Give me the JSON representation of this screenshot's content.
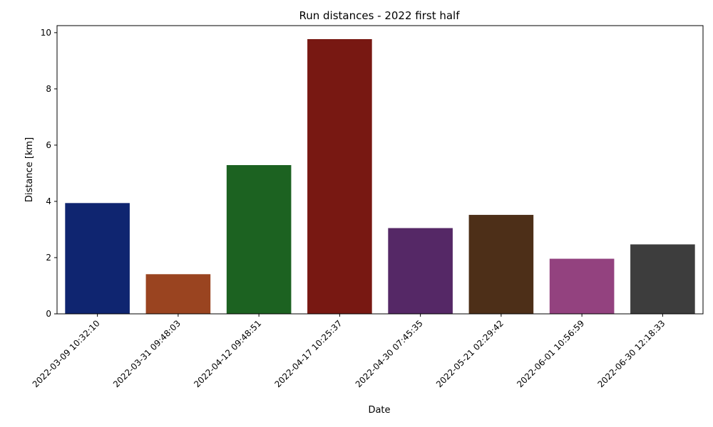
{
  "chart_data": {
    "type": "bar",
    "title": "Run distances - 2022 first half",
    "xlabel": "Date",
    "ylabel": "Distance [km]",
    "categories": [
      "2022-03-09 10:32:10",
      "2022-03-31 09:48:03",
      "2022-04-12 09:48:51",
      "2022-04-17 10:25:37",
      "2022-04-30 07:45:35",
      "2022-05-21 02:29:42",
      "2022-06-01 10:56:59",
      "2022-06-30 12:18:33"
    ],
    "values": [
      3.94,
      1.41,
      5.29,
      9.77,
      3.05,
      3.52,
      1.96,
      2.47
    ],
    "colors": [
      "#0f2570",
      "#9a4420",
      "#1c6221",
      "#781812",
      "#552866",
      "#4d2f18",
      "#93427f",
      "#3d3d3d"
    ],
    "ylim": [
      0,
      10.25
    ],
    "yticks": [
      0,
      2,
      4,
      6,
      8,
      10
    ],
    "grid": false,
    "legend": "none"
  }
}
